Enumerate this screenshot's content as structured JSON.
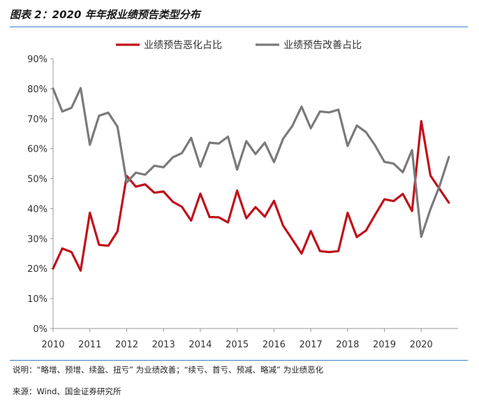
{
  "figure_title": "图表 2：2020 年年报业绩预告类型分布",
  "note": "说明：“略增、预增、续盈、扭亏” 为业绩改善；“续亏、首亏、预减、略减” 为业绩恶化",
  "source": "来源：Wind、国金证券研究所",
  "colors": {
    "rule": "#3a7fc1",
    "worse": "#c0101a",
    "better": "#7a7a7a",
    "axis": "#9a9a9a"
  },
  "chart_data": {
    "type": "line",
    "title": "",
    "xlabel": "",
    "ylabel": "",
    "x_ticks": [
      "2010",
      "2011",
      "2012",
      "2013",
      "2014",
      "2015",
      "2016",
      "2017",
      "2018",
      "2019",
      "2020"
    ],
    "y_ticks": [
      "0%",
      "10%",
      "20%",
      "30%",
      "40%",
      "50%",
      "60%",
      "70%",
      "80%",
      "90%"
    ],
    "ylim": [
      0,
      90
    ],
    "xlim": [
      2010,
      2021
    ],
    "legend_position": "top",
    "grid": false,
    "x": [
      2010.0,
      2010.25,
      2010.5,
      2010.75,
      2011.0,
      2011.25,
      2011.5,
      2011.75,
      2012.0,
      2012.25,
      2012.5,
      2012.75,
      2013.0,
      2013.25,
      2013.5,
      2013.75,
      2014.0,
      2014.25,
      2014.5,
      2014.75,
      2015.0,
      2015.25,
      2015.5,
      2015.75,
      2016.0,
      2016.25,
      2016.5,
      2016.75,
      2017.0,
      2017.25,
      2017.5,
      2017.75,
      2018.0,
      2018.25,
      2018.5,
      2018.75,
      2019.0,
      2019.25,
      2019.5,
      2019.75,
      2020.0,
      2020.25,
      2020.5,
      2020.75
    ],
    "series": [
      {
        "name": "业绩预告恶化占比",
        "color": "#c0101a",
        "values": [
          20.0,
          26.7,
          25.5,
          19.3,
          38.6,
          27.9,
          27.6,
          32.4,
          50.9,
          47.3,
          48.1,
          45.3,
          45.7,
          42.3,
          40.6,
          36.0,
          45.0,
          37.2,
          37.1,
          35.4,
          46.0,
          36.8,
          40.5,
          37.3,
          42.6,
          34.3,
          29.7,
          25.0,
          32.5,
          25.8,
          25.5,
          25.8,
          38.6,
          30.5,
          32.7,
          38.0,
          43.1,
          42.5,
          44.9,
          39.2,
          69.2,
          51.0,
          46.5,
          42.0
        ]
      },
      {
        "name": "业绩预告改善占比",
        "color": "#7a7a7a",
        "values": [
          80.0,
          72.4,
          73.6,
          80.2,
          61.3,
          71.0,
          72.0,
          67.3,
          48.7,
          52.0,
          51.3,
          54.3,
          53.8,
          57.1,
          58.5,
          63.6,
          54.0,
          62.0,
          61.7,
          64.0,
          53.0,
          62.5,
          58.2,
          62.0,
          55.5,
          63.3,
          67.6,
          74.0,
          66.8,
          72.4,
          72.1,
          73.0,
          60.9,
          67.7,
          65.5,
          61.0,
          55.6,
          55.0,
          52.1,
          59.5,
          30.6,
          39.8,
          47.6,
          57.2
        ]
      }
    ]
  }
}
